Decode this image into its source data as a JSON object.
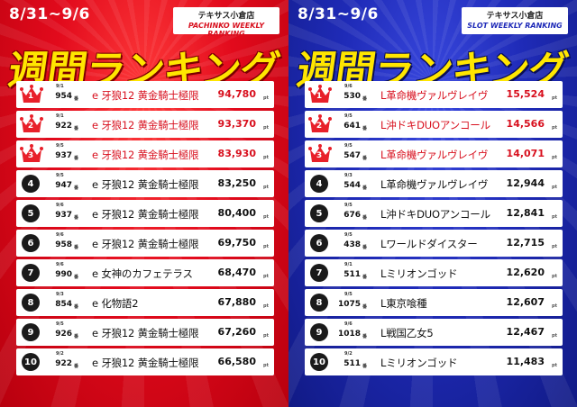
{
  "colors": {
    "crown": "#e8202a",
    "top_text": "#d8101e",
    "title_yellow": "#ffe600",
    "left_bg": "#e20a1c",
    "right_bg": "#1f2bb8"
  },
  "ban_label": "番",
  "pt_label": "pt",
  "left": {
    "date_range": "8/31~9/6",
    "store_name": "テキサス小倉店",
    "ranking_type": "PACHINKO WEEKLY RANKING",
    "title": "週間ランキング",
    "rows": [
      {
        "rank": "1",
        "date": "9/1",
        "machine_no": "954",
        "name": "e 牙狼12 黄金騎士極限",
        "payout": "94,780",
        "top": true
      },
      {
        "rank": "2",
        "date": "9/1",
        "machine_no": "922",
        "name": "e 牙狼12 黄金騎士極限",
        "payout": "93,370",
        "top": true
      },
      {
        "rank": "3",
        "date": "9/5",
        "machine_no": "937",
        "name": "e 牙狼12 黄金騎士極限",
        "payout": "83,930",
        "top": true
      },
      {
        "rank": "4",
        "date": "9/5",
        "machine_no": "947",
        "name": "e 牙狼12 黄金騎士極限",
        "payout": "83,250",
        "top": false
      },
      {
        "rank": "5",
        "date": "9/6",
        "machine_no": "937",
        "name": "e 牙狼12 黄金騎士極限",
        "payout": "80,400",
        "top": false
      },
      {
        "rank": "6",
        "date": "9/6",
        "machine_no": "958",
        "name": "e 牙狼12 黄金騎士極限",
        "payout": "69,750",
        "top": false
      },
      {
        "rank": "7",
        "date": "9/6",
        "machine_no": "990",
        "name": "e 女神のカフェテラス",
        "payout": "68,470",
        "top": false
      },
      {
        "rank": "8",
        "date": "9/3",
        "machine_no": "854",
        "name": "e 化物語2",
        "payout": "67,880",
        "top": false
      },
      {
        "rank": "9",
        "date": "9/5",
        "machine_no": "926",
        "name": "e 牙狼12 黄金騎士極限",
        "payout": "67,260",
        "top": false
      },
      {
        "rank": "10",
        "date": "9/2",
        "machine_no": "922",
        "name": "e 牙狼12 黄金騎士極限",
        "payout": "66,580",
        "top": false
      }
    ]
  },
  "right": {
    "date_range": "8/31~9/6",
    "store_name": "テキサス小倉店",
    "ranking_type": "SLOT WEEKLY RANKING",
    "title": "週間ランキング",
    "rows": [
      {
        "rank": "1",
        "date": "9/6",
        "machine_no": "530",
        "name": "L革命機ヴァルヴレイヴ",
        "payout": "15,524",
        "top": true
      },
      {
        "rank": "2",
        "date": "9/5",
        "machine_no": "641",
        "name": "L沖ドキDUOアンコール",
        "payout": "14,566",
        "top": true
      },
      {
        "rank": "3",
        "date": "9/5",
        "machine_no": "547",
        "name": "L革命機ヴァルヴレイヴ",
        "payout": "14,071",
        "top": true
      },
      {
        "rank": "4",
        "date": "9/3",
        "machine_no": "544",
        "name": "L革命機ヴァルヴレイヴ",
        "payout": "12,944",
        "top": false
      },
      {
        "rank": "5",
        "date": "9/5",
        "machine_no": "676",
        "name": "L沖ドキDUOアンコール",
        "payout": "12,841",
        "top": false
      },
      {
        "rank": "6",
        "date": "9/5",
        "machine_no": "438",
        "name": "Lワールドダイスター",
        "payout": "12,715",
        "top": false
      },
      {
        "rank": "7",
        "date": "9/1",
        "machine_no": "511",
        "name": "Lミリオンゴッド",
        "payout": "12,620",
        "top": false
      },
      {
        "rank": "8",
        "date": "9/5",
        "machine_no": "1075",
        "name": "L東京喰種",
        "payout": "12,607",
        "top": false
      },
      {
        "rank": "9",
        "date": "9/6",
        "machine_no": "1018",
        "name": "L戦国乙女5",
        "payout": "12,467",
        "top": false
      },
      {
        "rank": "10",
        "date": "9/2",
        "machine_no": "511",
        "name": "Lミリオンゴッド",
        "payout": "11,483",
        "top": false
      }
    ]
  }
}
